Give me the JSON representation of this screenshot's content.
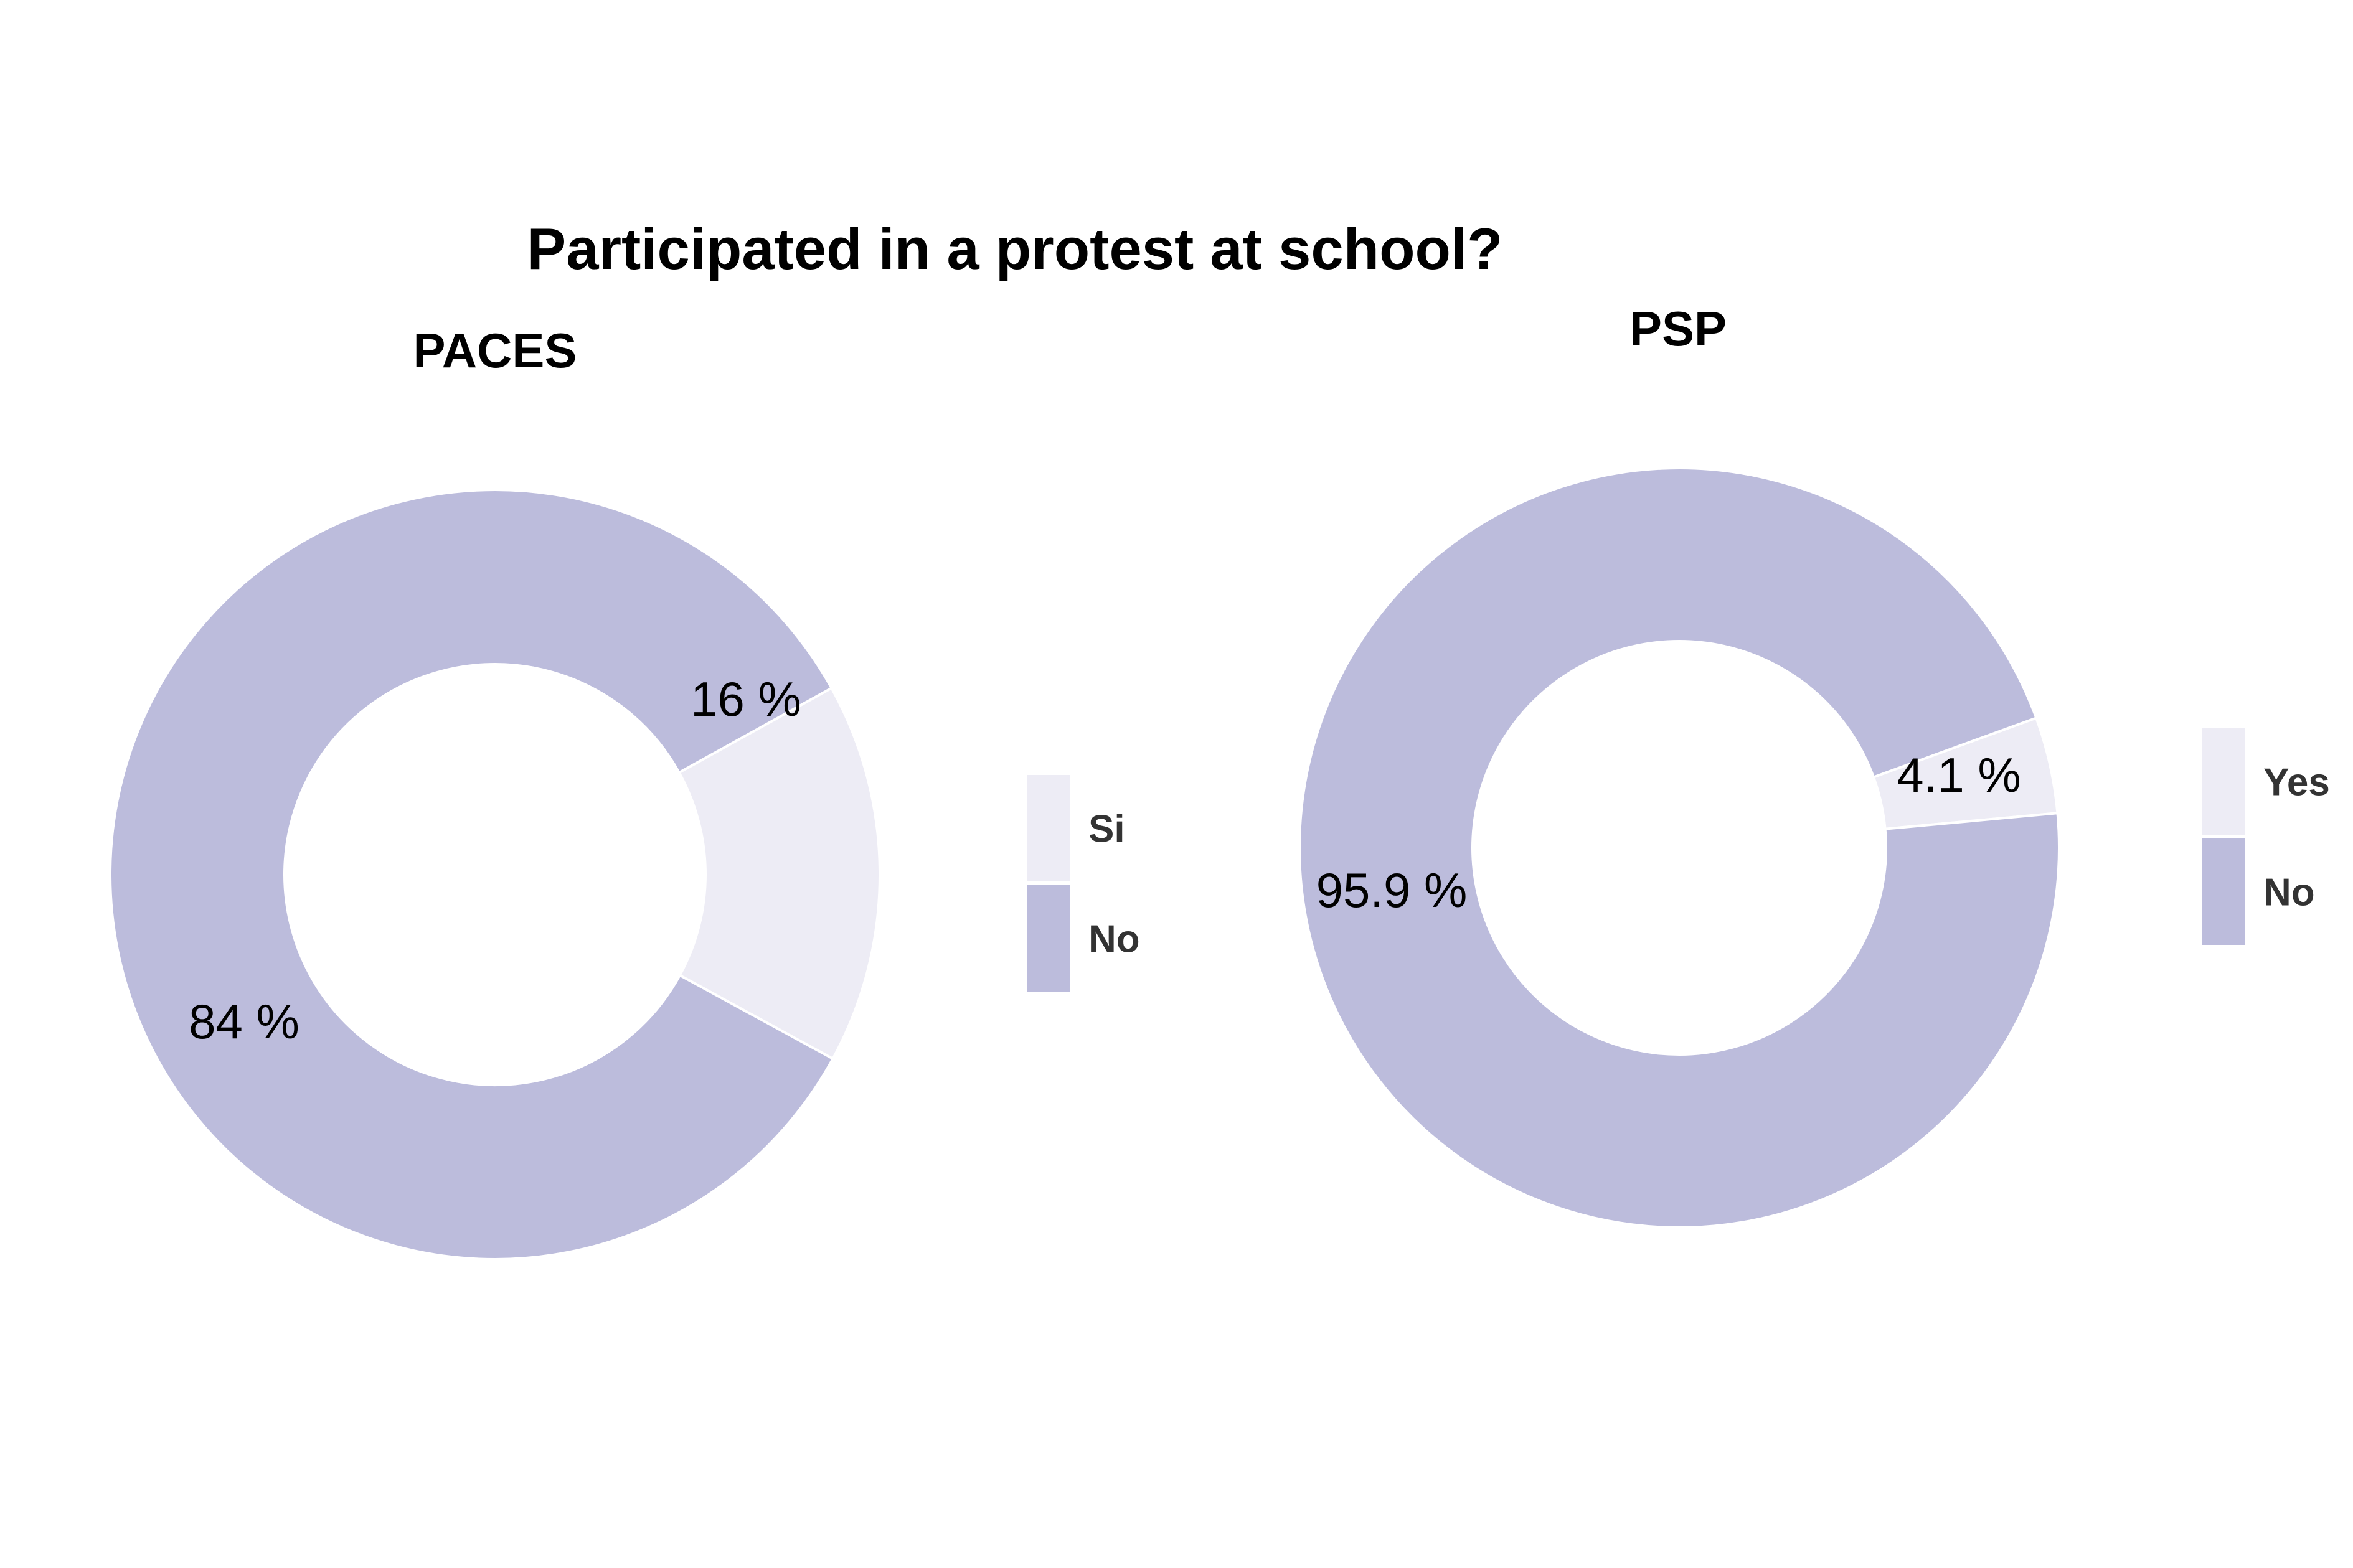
{
  "title": "Participated in a protest at school?",
  "colors": {
    "yes": "#EDECF5",
    "no": "#BCBCDC",
    "background": "#FFFFFF",
    "slice_border": "#FFFFFF"
  },
  "chart_data": [
    {
      "type": "pie",
      "style": "donut",
      "title": "PACES",
      "categories": [
        "Si",
        "No"
      ],
      "values": [
        16,
        84
      ],
      "labels": [
        "16 %",
        "84 %"
      ],
      "legend": [
        "Si",
        "No"
      ],
      "legend_placement": "right"
    },
    {
      "type": "pie",
      "style": "donut",
      "title": "PSP",
      "categories": [
        "Yes",
        "No"
      ],
      "values": [
        4.1,
        95.9
      ],
      "labels": [
        "4.1 %",
        "95.9 %"
      ],
      "legend": [
        "Yes",
        "No"
      ],
      "legend_placement": "right"
    }
  ]
}
